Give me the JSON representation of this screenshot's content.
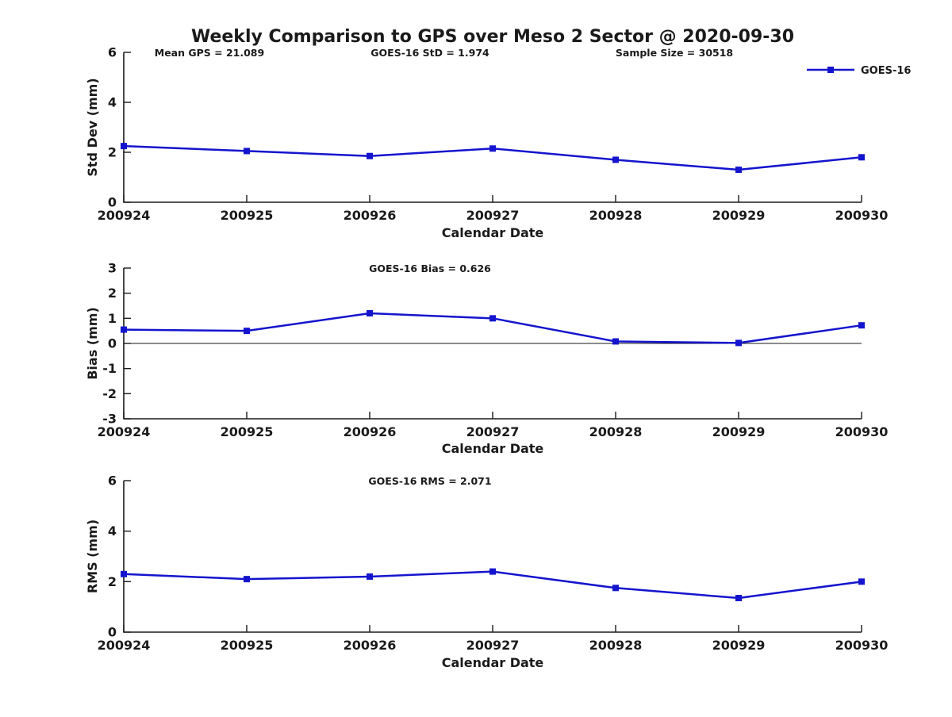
{
  "title": "Weekly Comparison to GPS over Meso 2 Sector @ 2020-09-30",
  "legend": {
    "label": "GOES-16",
    "line_color": "#1414CE",
    "marker": "square"
  },
  "colors": {
    "series": "#1414CE",
    "axis": "#1a1a1a",
    "text": "#1a1a1a"
  },
  "chart_data": [
    {
      "type": "line",
      "categories": [
        "200924",
        "200925",
        "200926",
        "200927",
        "200928",
        "200929",
        "200930"
      ],
      "series": [
        {
          "name": "GOES-16",
          "values": [
            2.25,
            2.05,
            1.85,
            2.15,
            1.7,
            1.3,
            1.8
          ]
        }
      ],
      "xlabel": "Calendar Date",
      "ylabel": "Std Dev (mm)",
      "ylim": [
        0,
        6
      ],
      "yticks": [
        0,
        2,
        4,
        6
      ],
      "grid": false,
      "zero_line": false,
      "legend_position": "top-right-outside",
      "annotations": [
        "Mean GPS = 21.089",
        "GOES-16 StD = 1.974",
        "Sample Size = 30518"
      ]
    },
    {
      "type": "line",
      "categories": [
        "200924",
        "200925",
        "200926",
        "200927",
        "200928",
        "200929",
        "200930"
      ],
      "series": [
        {
          "name": "GOES-16",
          "values": [
            0.55,
            0.5,
            1.2,
            1.0,
            0.08,
            0.02,
            0.72
          ]
        }
      ],
      "xlabel": "Calendar Date",
      "ylabel": "Bias (mm)",
      "ylim": [
        -3,
        3
      ],
      "yticks": [
        -3,
        -2,
        -1,
        0,
        1,
        2,
        3
      ],
      "grid": false,
      "zero_line": true,
      "annotations": [
        "GOES-16 Bias  = 0.626"
      ]
    },
    {
      "type": "line",
      "categories": [
        "200924",
        "200925",
        "200926",
        "200927",
        "200928",
        "200929",
        "200930"
      ],
      "series": [
        {
          "name": "GOES-16",
          "values": [
            2.3,
            2.1,
            2.2,
            2.4,
            1.75,
            1.35,
            2.0
          ]
        }
      ],
      "xlabel": "Calendar Date",
      "ylabel": "RMS (mm)",
      "ylim": [
        0,
        6
      ],
      "yticks": [
        0,
        2,
        4,
        6
      ],
      "grid": false,
      "zero_line": false,
      "annotations": [
        "GOES-16 RMS = 2.071"
      ]
    }
  ]
}
